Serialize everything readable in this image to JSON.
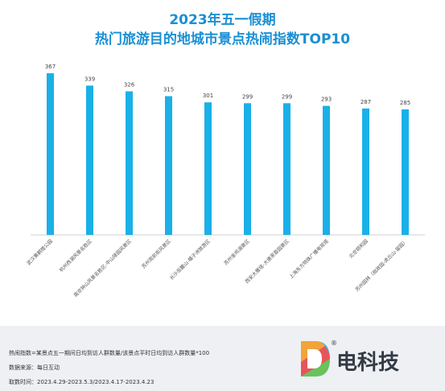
{
  "chart_data": {
    "type": "bar",
    "title": "2023年五一假期",
    "subtitle": "热门旅游目的地城市景点热闹指数TOP10",
    "categories": [
      "武汉黄鹤楼公园",
      "杭州西湖风景名胜区",
      "南京钟山风景名胜区-中山陵园风景区",
      "苏州观前街风景区",
      "长沙岳麓山-橘子洲旅游区",
      "苏州金鸡湖景区",
      "西安大雁塔-大唐芙蓉园景区",
      "上海东方明珠广播电视塔",
      "北京颐和园",
      "苏州园林（拙政园-虎丘山-留园）"
    ],
    "values": [
      367,
      339,
      326,
      315,
      301,
      299,
      299,
      293,
      287,
      285
    ],
    "ylim": [
      0,
      400
    ],
    "bar_color": "#1ab0e8",
    "grid": false,
    "legend": "none"
  },
  "footer": {
    "definition": "热闹指数=某景点五一期间日均到访人群数量/该景点平时日均到访人群数量*100",
    "source": "数据来源：每日互动",
    "period": "取数时间：2023.4.29-2023.5.3/2023.4.17-2023.4.23"
  },
  "brand": {
    "name": "电科技",
    "reg_mark": "®"
  }
}
